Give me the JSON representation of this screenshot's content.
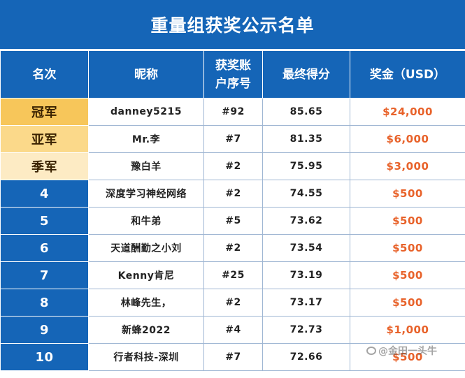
{
  "title": "重量组获奖公示名单",
  "headers": [
    "名次",
    "昵称",
    "获奖账\n户序号",
    "最终得分",
    "奖金（USD）"
  ],
  "rows": [
    {
      "rank": "冠军",
      "nickname": "danney5215",
      "account": "#92",
      "score": "85.65",
      "prize": "$24,000"
    },
    {
      "rank": "亚军",
      "nickname": "Mr.李",
      "account": "#7",
      "score": "81.35",
      "prize": "$6,000"
    },
    {
      "rank": "季军",
      "nickname": "豫白羊",
      "account": "#2",
      "score": "75.95",
      "prize": "$3,000"
    },
    {
      "rank": "4",
      "nickname": "深度学习神经网络",
      "account": "#2",
      "score": "74.55",
      "prize": "$500"
    },
    {
      "rank": "5",
      "nickname": "和牛弟",
      "account": "#5",
      "score": "73.62",
      "prize": "$500"
    },
    {
      "rank": "6",
      "nickname": "天道酬勤之小刘",
      "account": "#2",
      "score": "73.54",
      "prize": "$500"
    },
    {
      "rank": "7",
      "nickname": "Kenny肯尼",
      "account": "#25",
      "score": "73.19",
      "prize": "$500"
    },
    {
      "rank": "8",
      "nickname": "林峰先生，",
      "account": "#2",
      "score": "73.17",
      "prize": "$500"
    },
    {
      "rank": "9",
      "nickname": "新蜂2022",
      "account": "#4",
      "score": "72.73",
      "prize": "$1,000"
    },
    {
      "rank": "10",
      "nickname": "行者科技-深圳",
      "account": "#7",
      "score": "72.66",
      "prize": "$500"
    }
  ],
  "watermark": {
    "icon": "zhihu-icon",
    "text": "@金田一头牛"
  },
  "colors": {
    "header_blue": "#1565b7",
    "gold": "#f7c65a",
    "prize_orange": "#e8622a"
  }
}
